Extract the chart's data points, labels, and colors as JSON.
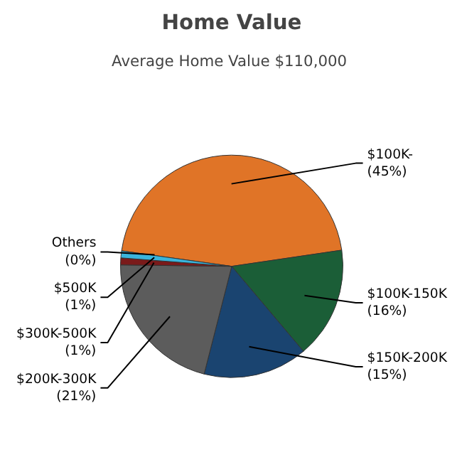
{
  "chart_data": {
    "type": "pie",
    "title": "Home Value",
    "subtitle": "Average Home Value  $110,000",
    "categories": [
      "$100K-",
      "$100K-150K",
      "$150K-200K",
      "$200K-300K",
      "$300K-500K",
      "$500K",
      "Others"
    ],
    "values": [
      45,
      16,
      15,
      21,
      1,
      1,
      0
    ],
    "value_labels": [
      "(45%)",
      "(16%)",
      "(15%)",
      "(21%)",
      "(1%)",
      "(1%)",
      "(0%)"
    ],
    "colors": [
      "#e07427",
      "#1b5e37",
      "#1a4470",
      "#5c5c5c",
      "#7a1a1a",
      "#3ab4dc",
      "#b0b0b0"
    ]
  }
}
